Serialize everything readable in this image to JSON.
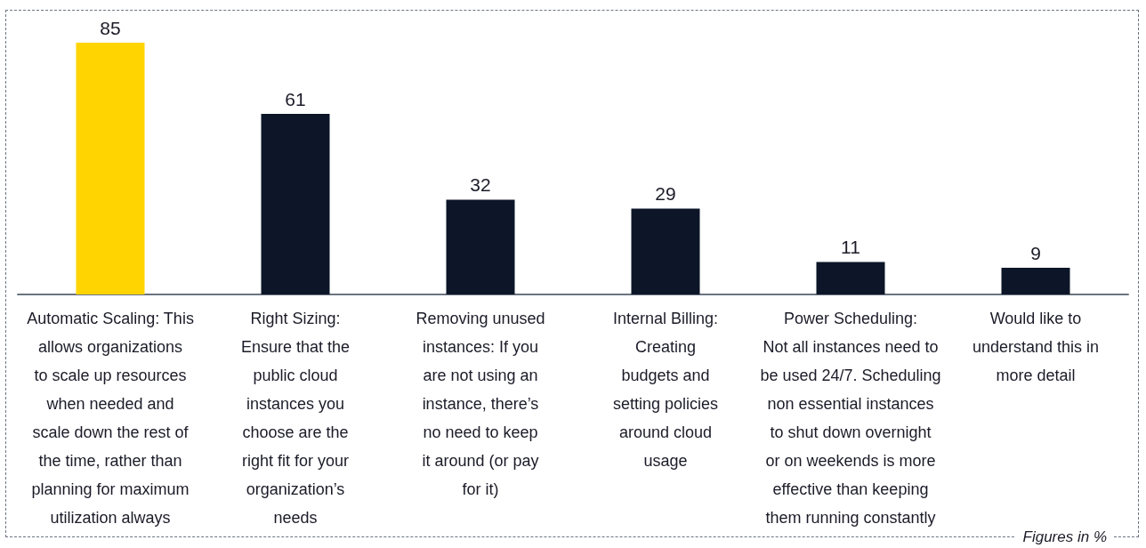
{
  "chart_data": {
    "type": "bar",
    "categories": [
      "Automatic Scaling: This\nallows organizations\nto scale up resources\nwhen needed and\nscale down the rest of\nthe time, rather than\nplanning for maximum\nutilization always",
      "Right Sizing:\nEnsure that the\npublic cloud\ninstances you\nchoose are the\nright fit for your\norganization’s\nneeds",
      "Removing unused\ninstances: If you\nare not using an\ninstance, there’s\nno need to keep\nit around (or pay\nfor it)",
      "Internal Billing:\nCreating\nbudgets and\nsetting policies\naround cloud\nusage",
      "Power Scheduling:\nNot all instances need to\nbe used 24/7. Scheduling\nnon essential instances\nto shut down overnight\nor on weekends is more\neffective than keeping\nthem running constantly",
      "Would like to\nunderstand this in\nmore detail"
    ],
    "values": [
      85,
      61,
      32,
      29,
      11,
      9
    ],
    "colors": [
      "#ffd400",
      "#0c1628",
      "#0c1628",
      "#0c1628",
      "#0c1628",
      "#0c1628"
    ],
    "data_labels": true,
    "tick_labels": "x",
    "annotations": [
      "Figures in %"
    ]
  }
}
